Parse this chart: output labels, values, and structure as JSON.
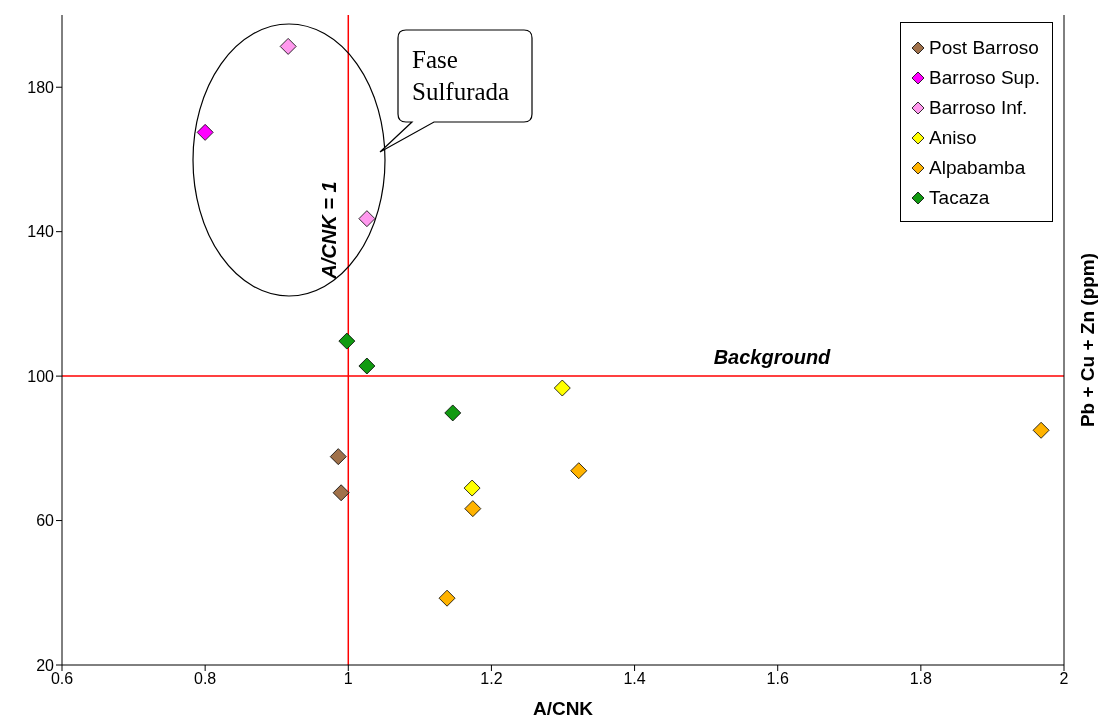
{
  "chart_data": {
    "type": "scatter",
    "xlabel": "A/CNK",
    "ylabel": "Pb + Cu + Zn  (ppm)",
    "xlim": [
      0.6,
      2
    ],
    "xticks": [
      0.6,
      0.8,
      1,
      1.2,
      1.4,
      1.6,
      1.8,
      2
    ],
    "ylim": [
      20,
      200
    ],
    "yticks": [
      20,
      60,
      100,
      140,
      180
    ],
    "grid": false,
    "legend": "top right",
    "marker": "diamond",
    "series": [
      {
        "name": "Post Barroso",
        "color": "#a0714a",
        "x": [
          0.986,
          0.99
        ],
        "values": [
          77.7,
          67.7
        ]
      },
      {
        "name": "Barroso Sup.",
        "color": "#ff00ff",
        "x": [
          0.8
        ],
        "values": [
          167.5
        ]
      },
      {
        "name": "Barroso Inf.",
        "color": "#ff99ee",
        "x": [
          0.916,
          1.026
        ],
        "values": [
          191.3,
          143.6
        ]
      },
      {
        "name": "Aniso",
        "color": "#ffff00",
        "x": [
          1.299,
          1.173
        ],
        "values": [
          96.7,
          69
        ]
      },
      {
        "name": "Alpabamba",
        "color": "#ffb300",
        "x": [
          1.968,
          1.322,
          1.174,
          1.138
        ],
        "values": [
          85,
          73.8,
          63.3,
          38.5
        ]
      },
      {
        "name": "Tacaza",
        "color": "#119a11",
        "x": [
          0.998,
          1.026,
          1.146
        ],
        "values": [
          109.7,
          102.8,
          89.8
        ]
      }
    ],
    "ref_lines": [
      {
        "axis": "x",
        "value": 1,
        "label": "A/CNK = 1",
        "color": "#ff0000"
      },
      {
        "axis": "y",
        "value": 100,
        "label": "Background",
        "color": "#ff0000"
      }
    ],
    "annotations": [
      "Fase Sulfurada"
    ]
  }
}
